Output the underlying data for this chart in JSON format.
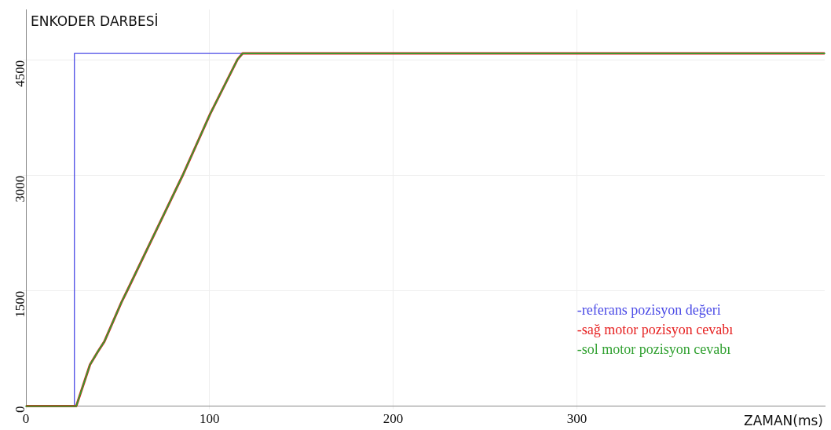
{
  "chart_data": {
    "type": "line",
    "title": "ENKODER DARBESİ",
    "xlabel": "ZAMAN(ms)",
    "xlim": [
      0,
      435
    ],
    "ylim": [
      0,
      5160
    ],
    "xticks": [
      0,
      100,
      200,
      300
    ],
    "yticks": [
      0,
      1500,
      3000,
      4500
    ],
    "grid": true,
    "legend": "bottom right",
    "marker": "none",
    "line_style": "solid",
    "series": [
      {
        "name": "-referans pozisyon değeri",
        "color": "#4a4ae6",
        "x": [
          26.4,
          26.4,
          118
        ],
        "values": [
          0,
          4590,
          4590
        ]
      },
      {
        "name": "-sağ motor pozisyon cevabı",
        "color": "#e62020",
        "x": [
          0,
          27.4,
          34.9,
          39.2,
          42.7,
          52.0,
          55.5,
          85.3,
          100.3,
          115.2,
          118,
          435
        ],
        "values": [
          0,
          0,
          540,
          710,
          840,
          1350,
          1520,
          3000,
          3800,
          4510,
          4590,
          4590
        ]
      },
      {
        "name": "-sol motor pozisyon cevabı",
        "color": "#30a030",
        "x": [
          0,
          27.4,
          34.9,
          39.2,
          42.7,
          52.0,
          55.5,
          85.3,
          100.3,
          115.2,
          118,
          435
        ],
        "values": [
          0,
          0,
          540,
          710,
          840,
          1350,
          1520,
          3000,
          3800,
          4510,
          4590,
          4590
        ]
      }
    ]
  }
}
